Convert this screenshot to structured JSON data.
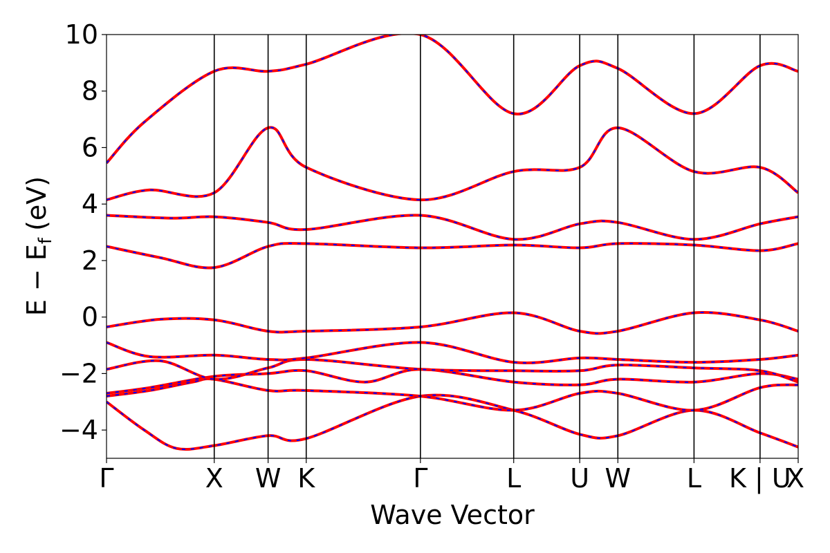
{
  "chart_data": {
    "type": "line",
    "xlabel": "Wave Vector",
    "ylabel": "E − E",
    "ylabel_subscript": "f",
    "ylabel_unit": "(eV)",
    "ylim": [
      -5,
      10
    ],
    "yticks": [
      10,
      8,
      6,
      4,
      2,
      0,
      -2,
      -4
    ],
    "grid": false,
    "kpath": [
      {
        "label": "Γ",
        "k": 0.0
      },
      {
        "label": "X",
        "k": 1.0
      },
      {
        "label": "W",
        "k": 1.5
      },
      {
        "label": "K",
        "k": 1.854
      },
      {
        "label": "Γ",
        "k": 2.914
      },
      {
        "label": "L",
        "k": 3.78
      },
      {
        "label": "U",
        "k": 4.393
      },
      {
        "label": "W",
        "k": 4.747
      },
      {
        "label": "L",
        "k": 5.454
      },
      {
        "label": "K | U",
        "k": 6.067
      },
      {
        "label": "X",
        "k": 6.421
      }
    ],
    "series_colors": {
      "primary": "#ff0000",
      "overlay": "#0000ff"
    },
    "bands": [
      {
        "k": [
          0,
          0.35,
          0.65,
          1.0,
          1.5,
          1.854,
          2.914,
          3.78,
          4.393,
          4.747,
          5.454,
          6.067,
          6.421
        ],
        "e": [
          -3.0,
          -4.0,
          -4.65,
          -4.55,
          -4.2,
          -4.3,
          -2.8,
          -3.3,
          -4.15,
          -4.2,
          -3.3,
          -4.1,
          -4.6
        ]
      },
      {
        "k": [
          0,
          0.4,
          0.8,
          1.0,
          1.5,
          1.854,
          2.914,
          3.78,
          4.393,
          4.747,
          5.454,
          6.067,
          6.421
        ],
        "e": [
          -2.8,
          -2.6,
          -2.3,
          -2.2,
          -2.6,
          -2.6,
          -2.8,
          -3.3,
          -2.7,
          -2.7,
          -3.3,
          -2.5,
          -2.4
        ]
      },
      {
        "k": [
          0,
          0.4,
          1.0,
          1.5,
          1.854,
          2.4,
          2.914,
          3.78,
          4.393,
          4.747,
          5.454,
          6.067,
          6.421
        ],
        "e": [
          -2.7,
          -2.5,
          -2.1,
          -2.0,
          -1.9,
          -2.3,
          -1.85,
          -2.3,
          -2.4,
          -2.2,
          -2.3,
          -2.0,
          -2.2
        ]
      },
      {
        "k": [
          0,
          0.5,
          1.0,
          1.5,
          1.854,
          2.914,
          3.78,
          4.393,
          4.747,
          5.454,
          6.067,
          6.421
        ],
        "e": [
          -1.85,
          -1.55,
          -2.2,
          -1.8,
          -1.5,
          -1.85,
          -1.9,
          -1.9,
          -1.7,
          -1.8,
          -1.9,
          -2.3
        ]
      },
      {
        "k": [
          0,
          0.4,
          1.0,
          1.5,
          1.854,
          2.914,
          3.78,
          4.393,
          4.747,
          5.454,
          6.067,
          6.421
        ],
        "e": [
          -0.9,
          -1.4,
          -1.35,
          -1.5,
          -1.45,
          -0.9,
          -1.6,
          -1.45,
          -1.5,
          -1.6,
          -1.5,
          -1.35
        ]
      },
      {
        "k": [
          0,
          0.5,
          1.0,
          1.5,
          1.854,
          2.914,
          3.78,
          4.393,
          4.747,
          5.454,
          6.067,
          6.421
        ],
        "e": [
          -0.35,
          -0.08,
          -0.1,
          -0.5,
          -0.5,
          -0.35,
          0.15,
          -0.5,
          -0.5,
          0.15,
          -0.1,
          -0.5
        ]
      },
      {
        "k": [
          0,
          0.5,
          1.0,
          1.5,
          1.854,
          2.914,
          3.78,
          4.393,
          4.747,
          5.454,
          6.067,
          6.421
        ],
        "e": [
          2.5,
          2.1,
          1.75,
          2.5,
          2.6,
          2.45,
          2.55,
          2.45,
          2.6,
          2.55,
          2.35,
          2.6
        ]
      },
      {
        "k": [
          0,
          0.6,
          1.0,
          1.5,
          1.854,
          2.914,
          3.78,
          4.393,
          4.747,
          5.454,
          6.067,
          6.421
        ],
        "e": [
          3.6,
          3.5,
          3.55,
          3.35,
          3.1,
          3.6,
          2.75,
          3.3,
          3.35,
          2.75,
          3.3,
          3.55
        ]
      },
      {
        "k": [
          0,
          0.4,
          1.0,
          1.5,
          1.854,
          2.914,
          3.78,
          4.393,
          4.747,
          5.454,
          6.067,
          6.421
        ],
        "e": [
          4.15,
          4.5,
          4.4,
          6.7,
          5.3,
          4.15,
          5.15,
          5.3,
          6.7,
          5.15,
          5.3,
          4.4
        ]
      },
      {
        "k": [
          0,
          0.35,
          1.0,
          1.5,
          1.854,
          2.914,
          3.78,
          4.393,
          4.747,
          5.454,
          6.067,
          6.421
        ],
        "e": [
          5.45,
          6.9,
          8.7,
          8.7,
          8.95,
          10.0,
          7.2,
          8.9,
          8.8,
          7.2,
          8.9,
          8.7
        ]
      }
    ]
  }
}
